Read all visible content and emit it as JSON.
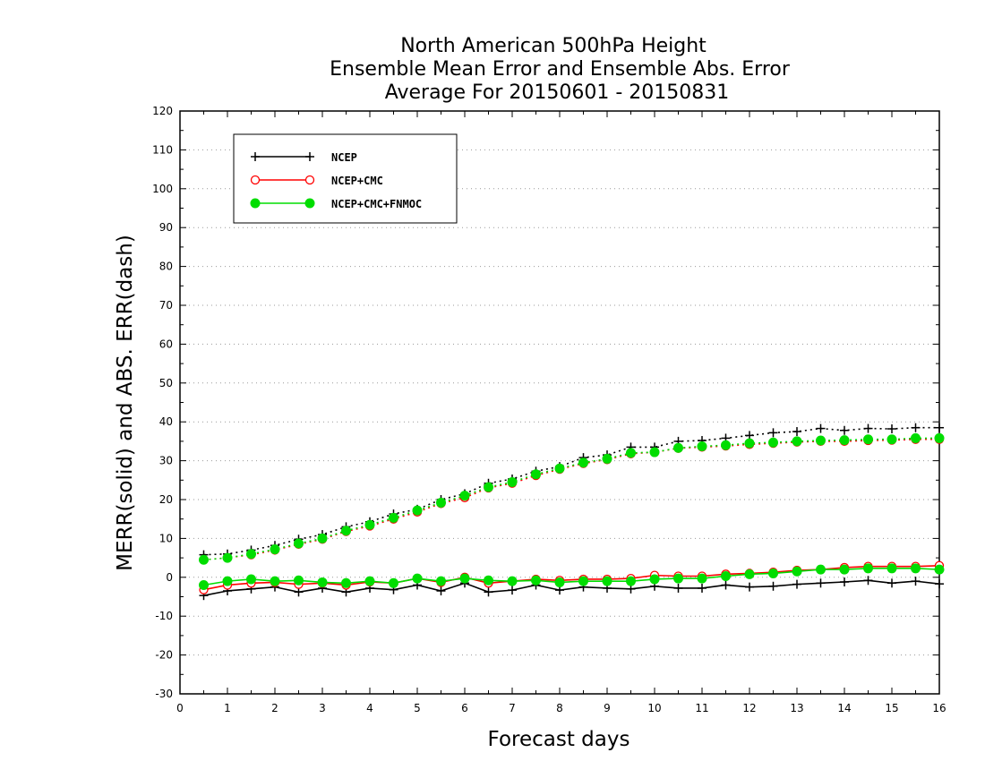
{
  "chart_data": {
    "type": "line",
    "title": [
      "North American 500hPa Height",
      "Ensemble Mean Error and Ensemble Abs. Error",
      "Average For 20150601 - 20150831"
    ],
    "xlabel": "Forecast days",
    "ylabel": "MERR(solid) and ABS. ERR(dash)",
    "xlim": [
      0,
      16
    ],
    "ylim": [
      -30,
      120
    ],
    "xticks": [
      0,
      1,
      2,
      3,
      4,
      5,
      6,
      7,
      8,
      9,
      10,
      11,
      12,
      13,
      14,
      15,
      16
    ],
    "yticks": [
      -30,
      -20,
      -10,
      0,
      10,
      20,
      30,
      40,
      50,
      60,
      70,
      80,
      90,
      100,
      110,
      120
    ],
    "grid": "horizontal dotted",
    "legend_position": "top-left",
    "x": [
      0.5,
      1,
      1.5,
      2,
      2.5,
      3,
      3.5,
      4,
      4.5,
      5,
      5.5,
      6,
      6.5,
      7,
      7.5,
      8,
      8.5,
      9,
      9.5,
      10,
      10.5,
      11,
      11.5,
      12,
      12.5,
      13,
      13.5,
      14,
      14.5,
      15,
      15.5,
      16
    ],
    "series": [
      {
        "name": "NCEP",
        "color": "#000000",
        "marker": "plus",
        "merr": [
          -4.7,
          -3.5,
          -3.0,
          -2.5,
          -3.8,
          -2.8,
          -3.8,
          -2.8,
          -3.2,
          -2.0,
          -3.5,
          -1.5,
          -3.8,
          -3.3,
          -2.0,
          -3.3,
          -2.5,
          -2.8,
          -3.0,
          -2.3,
          -2.8,
          -2.8,
          -2.0,
          -2.5,
          -2.3,
          -1.8,
          -1.5,
          -1.2,
          -0.8,
          -1.5,
          -1.0,
          -1.7
        ],
        "abserr": [
          5.8,
          6.0,
          7.0,
          8.2,
          9.8,
          11.0,
          13.0,
          14.3,
          16.3,
          17.5,
          20.0,
          21.5,
          24.2,
          25.3,
          27.3,
          28.5,
          30.8,
          31.5,
          33.5,
          33.5,
          35.0,
          35.2,
          35.8,
          36.5,
          37.2,
          37.5,
          38.3,
          37.8,
          38.3,
          38.2,
          38.5,
          38.5
        ]
      },
      {
        "name": "NCEP+CMC",
        "color": "#ff0000",
        "marker": "open-circle",
        "merr": [
          -3.2,
          -2.0,
          -1.5,
          -1.3,
          -1.8,
          -1.5,
          -2.0,
          -1.2,
          -1.5,
          -0.3,
          -1.3,
          0.0,
          -1.5,
          -1.0,
          -0.5,
          -0.8,
          -0.5,
          -0.5,
          -0.3,
          0.5,
          0.3,
          0.3,
          0.8,
          1.0,
          1.3,
          1.8,
          2.0,
          2.5,
          2.8,
          2.8,
          2.8,
          3.0
        ],
        "abserr": [
          4.5,
          5.0,
          5.8,
          7.0,
          8.5,
          9.8,
          11.8,
          13.2,
          15.0,
          16.8,
          19.0,
          20.5,
          23.0,
          24.2,
          26.2,
          27.8,
          29.3,
          30.3,
          31.8,
          32.2,
          33.2,
          33.5,
          33.8,
          34.2,
          34.5,
          34.8,
          35.0,
          35.0,
          35.2,
          35.3,
          35.5,
          35.5
        ]
      },
      {
        "name": "NCEP+CMC+FNMOC",
        "color": "#00dd00",
        "marker": "filled-circle",
        "merr": [
          -2.0,
          -1.0,
          -0.5,
          -1.0,
          -0.8,
          -1.3,
          -1.5,
          -1.0,
          -1.5,
          -0.3,
          -1.0,
          -0.3,
          -0.8,
          -1.0,
          -0.8,
          -1.3,
          -1.0,
          -1.0,
          -1.0,
          -0.5,
          -0.3,
          -0.3,
          0.3,
          0.8,
          1.0,
          1.5,
          2.0,
          2.0,
          2.3,
          2.3,
          2.3,
          2.0
        ],
        "abserr": [
          4.5,
          5.0,
          6.0,
          7.2,
          8.7,
          10.0,
          12.0,
          13.5,
          15.3,
          17.2,
          19.2,
          21.0,
          23.2,
          24.5,
          26.5,
          28.0,
          29.5,
          30.5,
          32.0,
          32.2,
          33.3,
          33.7,
          34.0,
          34.5,
          34.7,
          35.0,
          35.2,
          35.3,
          35.5,
          35.5,
          35.8,
          35.8
        ]
      }
    ]
  }
}
